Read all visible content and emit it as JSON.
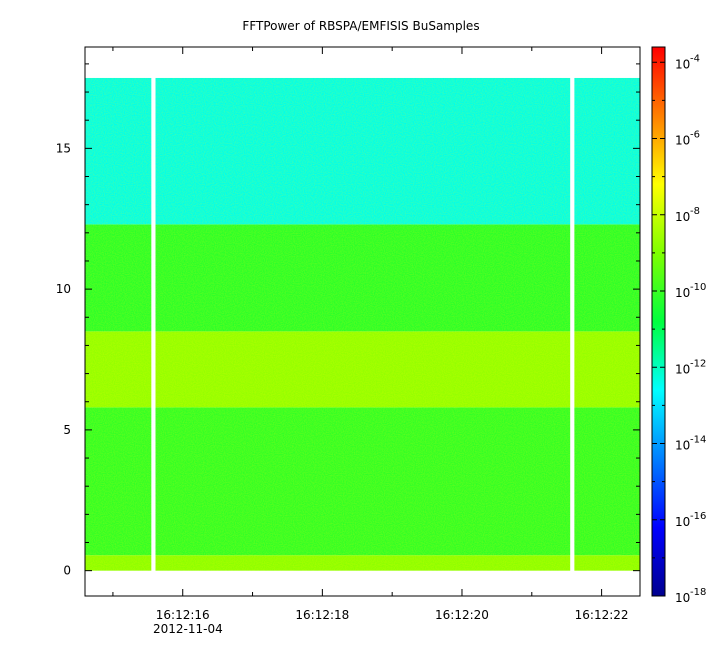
{
  "chart_data": {
    "type": "heatmap",
    "title": "FFTPower of RBSPA/EMFISIS  BuSamples",
    "xlabel": "",
    "ylabel": "",
    "x_tick_labels": [
      "16:12:16",
      "16:12:18",
      "16:12:20",
      "16:12:22"
    ],
    "x_tick_values": [
      16.0,
      18.0,
      20.0,
      22.0
    ],
    "x_date_label": "2012-11-04",
    "x_range": [
      14.6,
      22.55
    ],
    "y_tick_values": [
      0,
      5,
      10,
      15
    ],
    "y_tick_labels": [
      "0",
      "5",
      "10",
      "15"
    ],
    "ylim": [
      -0.9,
      18.6
    ],
    "data_y_range": [
      0,
      17.5
    ],
    "data_gaps": [
      {
        "start": 15.55,
        "end": 15.61
      },
      {
        "start": 21.55,
        "end": 21.61
      }
    ],
    "colorbar": {
      "scale": "log",
      "range_exponents": [
        -18,
        -3.6
      ],
      "tick_bases": [
        "10",
        "10",
        "10",
        "10",
        "10",
        "10",
        "10",
        "10"
      ],
      "tick_exponents": [
        "-18",
        "-16",
        "-14",
        "-12",
        "-10",
        "-8",
        "-6",
        "-4"
      ],
      "tick_values": [
        -18,
        -16,
        -14,
        -12,
        -10,
        -8,
        -6,
        -4
      ]
    },
    "power_bands": [
      {
        "y_from": 0.0,
        "y_to": 0.55,
        "log_power": -8.8
      },
      {
        "y_from": 0.55,
        "y_to": 5.8,
        "log_power": -10.1
      },
      {
        "y_from": 5.8,
        "y_to": 8.5,
        "log_power": -8.7
      },
      {
        "y_from": 8.5,
        "y_to": 12.3,
        "log_power": -10.2
      },
      {
        "y_from": 12.3,
        "y_to": 17.5,
        "log_power": -12.4
      }
    ],
    "grid": false,
    "legend": "none"
  }
}
